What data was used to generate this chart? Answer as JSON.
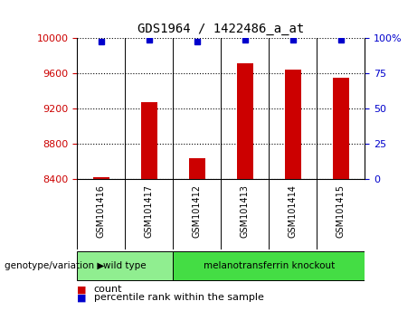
{
  "title": "GDS1964 / 1422486_a_at",
  "samples": [
    "GSM101416",
    "GSM101417",
    "GSM101412",
    "GSM101413",
    "GSM101414",
    "GSM101415"
  ],
  "counts": [
    8420,
    9280,
    8640,
    9720,
    9650,
    9555
  ],
  "percentile_ranks": [
    98,
    99,
    98,
    99,
    99,
    99
  ],
  "groups": [
    {
      "label": "wild type",
      "indices": [
        0,
        1
      ],
      "color": "#90ee90"
    },
    {
      "label": "melanotransferrin knockout",
      "indices": [
        2,
        3,
        4,
        5
      ],
      "color": "#44dd44"
    }
  ],
  "ylim_left": [
    8400,
    10000
  ],
  "ylim_right": [
    0,
    100
  ],
  "yticks_left": [
    8400,
    8800,
    9200,
    9600,
    10000
  ],
  "yticks_right": [
    0,
    25,
    50,
    75,
    100
  ],
  "bar_color": "#cc0000",
  "dot_color": "#0000cc",
  "background_color": "#ffffff",
  "grid_color": "#000000",
  "left_tick_color": "#cc0000",
  "right_tick_color": "#0000cc",
  "label_count": "count",
  "label_percentile": "percentile rank within the sample",
  "group_label": "genotype/variation",
  "cell_bg": "#c8c8c8",
  "bar_width": 0.35
}
